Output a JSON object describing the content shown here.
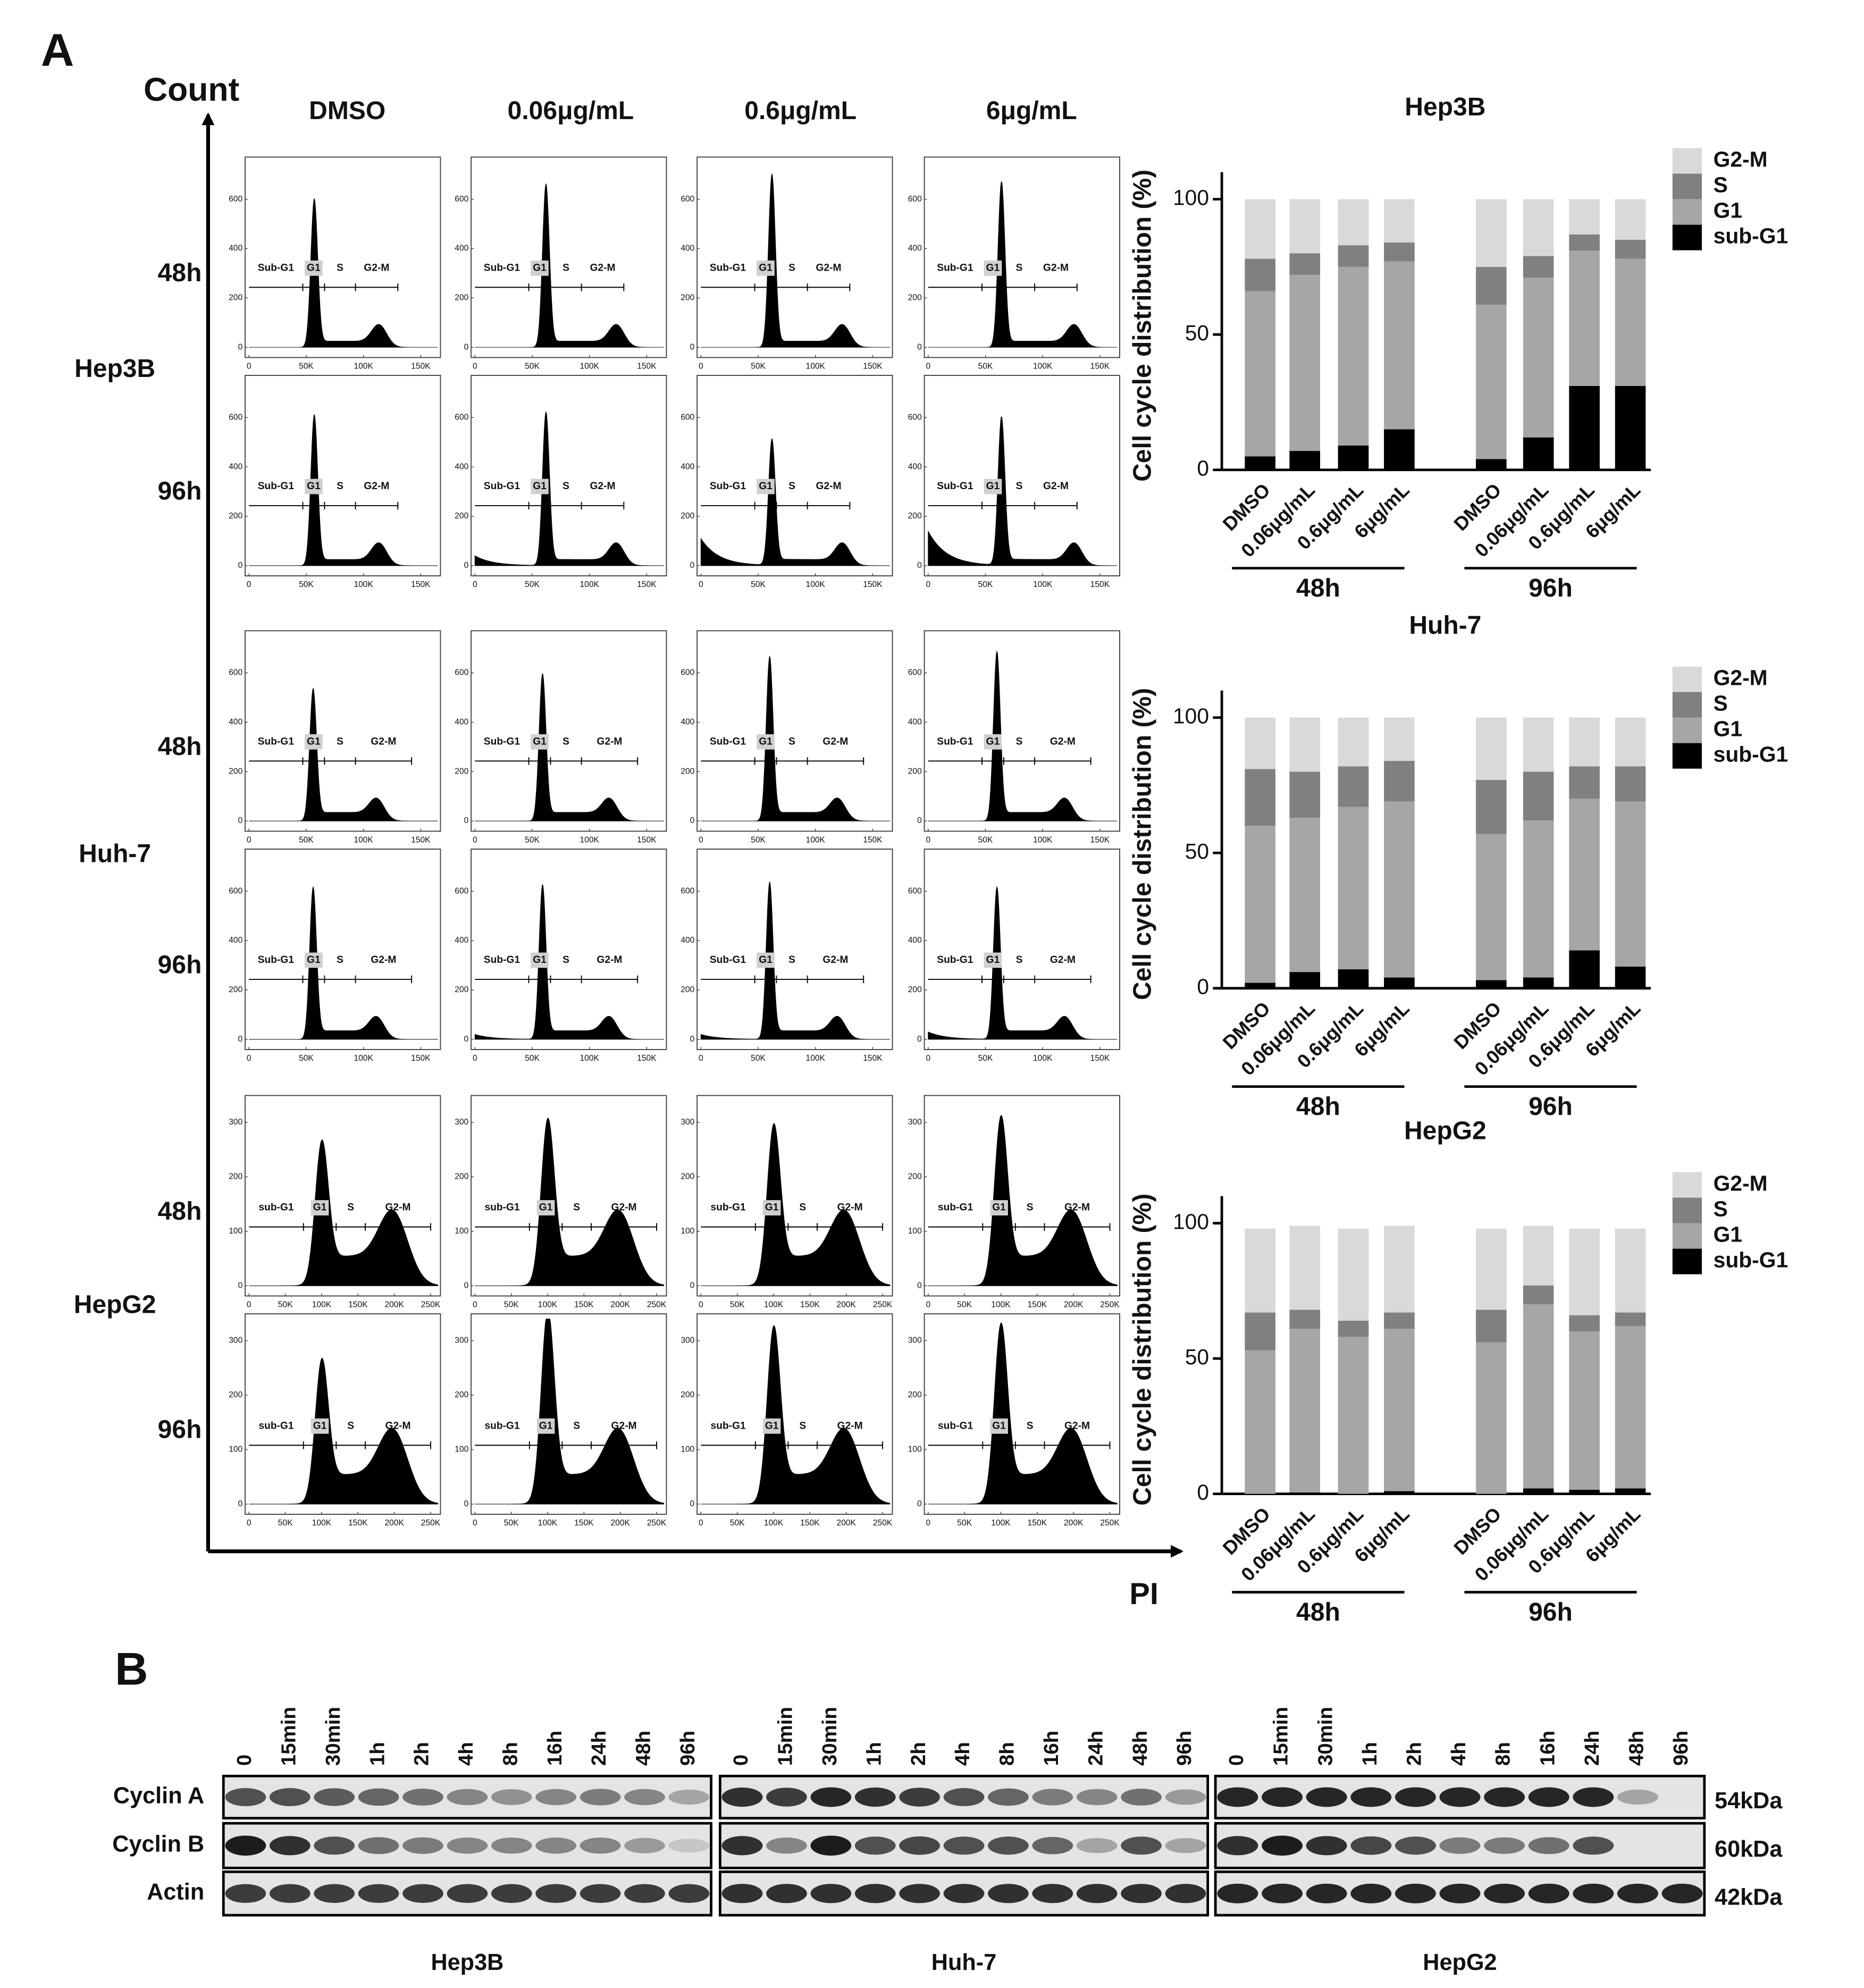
{
  "panel_a": {
    "label": "A",
    "y_axis_label": "Count",
    "x_axis_label": "PI",
    "columns": [
      "DMSO",
      "0.06μg/mL",
      "0.6μg/mL",
      "6μg/mL"
    ],
    "cell_lines": [
      {
        "name": "Hep3B",
        "times": [
          "48h",
          "96h"
        ],
        "gates": [
          "Sub-G1",
          "G1",
          "S",
          "G2-M"
        ],
        "xlim": [
          0,
          165000
        ],
        "xticks": [
          0,
          {
            "value": 50000,
            "label": "50K"
          },
          {
            "value": 100000,
            "label": "100K"
          },
          {
            "value": 150000,
            "label": "150K"
          }
        ],
        "ylim": [
          0,
          750
        ],
        "yticks": [
          0,
          200,
          400,
          600
        ]
      },
      {
        "name": "Huh-7",
        "times": [
          "48h",
          "96h"
        ],
        "gates": [
          "Sub-G1",
          "G1",
          "S",
          "G2-M"
        ],
        "xlim": [
          0,
          165000
        ],
        "xticks": [
          0,
          {
            "value": 50000,
            "label": "50K"
          },
          {
            "value": 100000,
            "label": "100K"
          },
          {
            "value": 150000,
            "label": "150K"
          }
        ],
        "ylim": [
          0,
          750
        ],
        "yticks": [
          0,
          200,
          400,
          600
        ]
      },
      {
        "name": "HepG2",
        "times": [
          "48h",
          "96h"
        ],
        "gates": [
          "sub-G1",
          "G1",
          "S",
          "G2-M"
        ],
        "xlim": [
          0,
          260000
        ],
        "xticks": [
          0,
          {
            "value": 50000,
            "label": "50K"
          },
          {
            "value": 100000,
            "label": "100K"
          },
          {
            "value": 150000,
            "label": "150K"
          },
          {
            "value": 200000,
            "label": "200K"
          },
          {
            "value": 250000,
            "label": "250K"
          }
        ],
        "ylim": [
          0,
          340
        ],
        "yticks": [
          0,
          100,
          200,
          300
        ]
      }
    ]
  },
  "chart_data": [
    {
      "type": "stacked-bar",
      "title": "Hep3B",
      "y_label": "Cell cycle distribution (%)",
      "categories": [
        "DMSO",
        "0.06μg/mL",
        "0.6μg/mL",
        "6μg/mL",
        "DMSO",
        "0.06μg/mL",
        "0.6μg/mL",
        "6μg/mL"
      ],
      "groups": [
        "48h",
        "96h"
      ],
      "ylim": [
        0,
        110
      ],
      "yticks": [
        0,
        50,
        100
      ],
      "series": [
        {
          "name": "G2-M",
          "color": "#d9d9d9",
          "values": [
            22,
            20,
            17,
            16,
            25,
            21,
            13,
            15
          ]
        },
        {
          "name": "S",
          "color": "#808080",
          "values": [
            12,
            8,
            8,
            7,
            14,
            8,
            6,
            7
          ]
        },
        {
          "name": "G1",
          "color": "#a6a6a6",
          "values": [
            61,
            65,
            66,
            62,
            57,
            59,
            50,
            47
          ]
        },
        {
          "name": "sub-G1",
          "color": "#000000",
          "values": [
            5,
            7,
            9,
            15,
            4,
            12,
            31,
            31
          ]
        }
      ]
    },
    {
      "type": "stacked-bar",
      "title": "Huh-7",
      "y_label": "Cell cycle distribution (%)",
      "categories": [
        "DMSO",
        "0.06μg/mL",
        "0.6μg/mL",
        "6μg/mL",
        "DMSO",
        "0.06μg/mL",
        "0.6μg/mL",
        "6μg/mL"
      ],
      "groups": [
        "48h",
        "96h"
      ],
      "ylim": [
        0,
        110
      ],
      "yticks": [
        0,
        50,
        100
      ],
      "series": [
        {
          "name": "G2-M",
          "color": "#d9d9d9",
          "values": [
            19,
            20,
            18,
            16,
            23,
            20,
            18,
            18
          ]
        },
        {
          "name": "S",
          "color": "#808080",
          "values": [
            21,
            17,
            15,
            15,
            20,
            18,
            12,
            13
          ]
        },
        {
          "name": "G1",
          "color": "#a6a6a6",
          "values": [
            58,
            57,
            60,
            65,
            54,
            58,
            56,
            61
          ]
        },
        {
          "name": "sub-G1",
          "color": "#000000",
          "values": [
            2,
            6,
            7,
            4,
            3,
            4,
            14,
            8
          ]
        }
      ]
    },
    {
      "type": "stacked-bar",
      "title": "HepG2",
      "y_label": "Cell cycle distribution (%)",
      "categories": [
        "DMSO",
        "0.06μg/mL",
        "0.6μg/mL",
        "6μg/mL",
        "DMSO",
        "0.06μg/mL",
        "0.6μg/mL",
        "6μg/mL"
      ],
      "groups": [
        "48h",
        "96h"
      ],
      "ylim": [
        0,
        110
      ],
      "yticks": [
        0,
        50,
        100
      ],
      "series": [
        {
          "name": "G2-M",
          "color": "#d9d9d9",
          "values": [
            31,
            31,
            34,
            32,
            30,
            22,
            32,
            31
          ]
        },
        {
          "name": "S",
          "color": "#808080",
          "values": [
            14,
            7,
            6,
            6,
            12,
            7,
            6,
            5
          ]
        },
        {
          "name": "G1",
          "color": "#a6a6a6",
          "values": [
            53,
            60.5,
            58,
            60,
            56,
            68,
            58.5,
            60
          ]
        },
        {
          "name": "sub-G1",
          "color": "#000000",
          "values": [
            0,
            0.5,
            0,
            1,
            0,
            2,
            1.5,
            2
          ]
        }
      ]
    }
  ],
  "panel_b": {
    "label": "B",
    "lanes": [
      "0",
      "15min",
      "30min",
      "1h",
      "2h",
      "4h",
      "8h",
      "16h",
      "24h",
      "48h",
      "96h"
    ],
    "proteins": [
      "Cyclin A",
      "Cyclin B",
      "Actin"
    ],
    "sizes": [
      "54kDa",
      "60kDa",
      "42kDa"
    ],
    "cell_lines": [
      "Hep3B",
      "Huh-7",
      "HepG2"
    ]
  }
}
